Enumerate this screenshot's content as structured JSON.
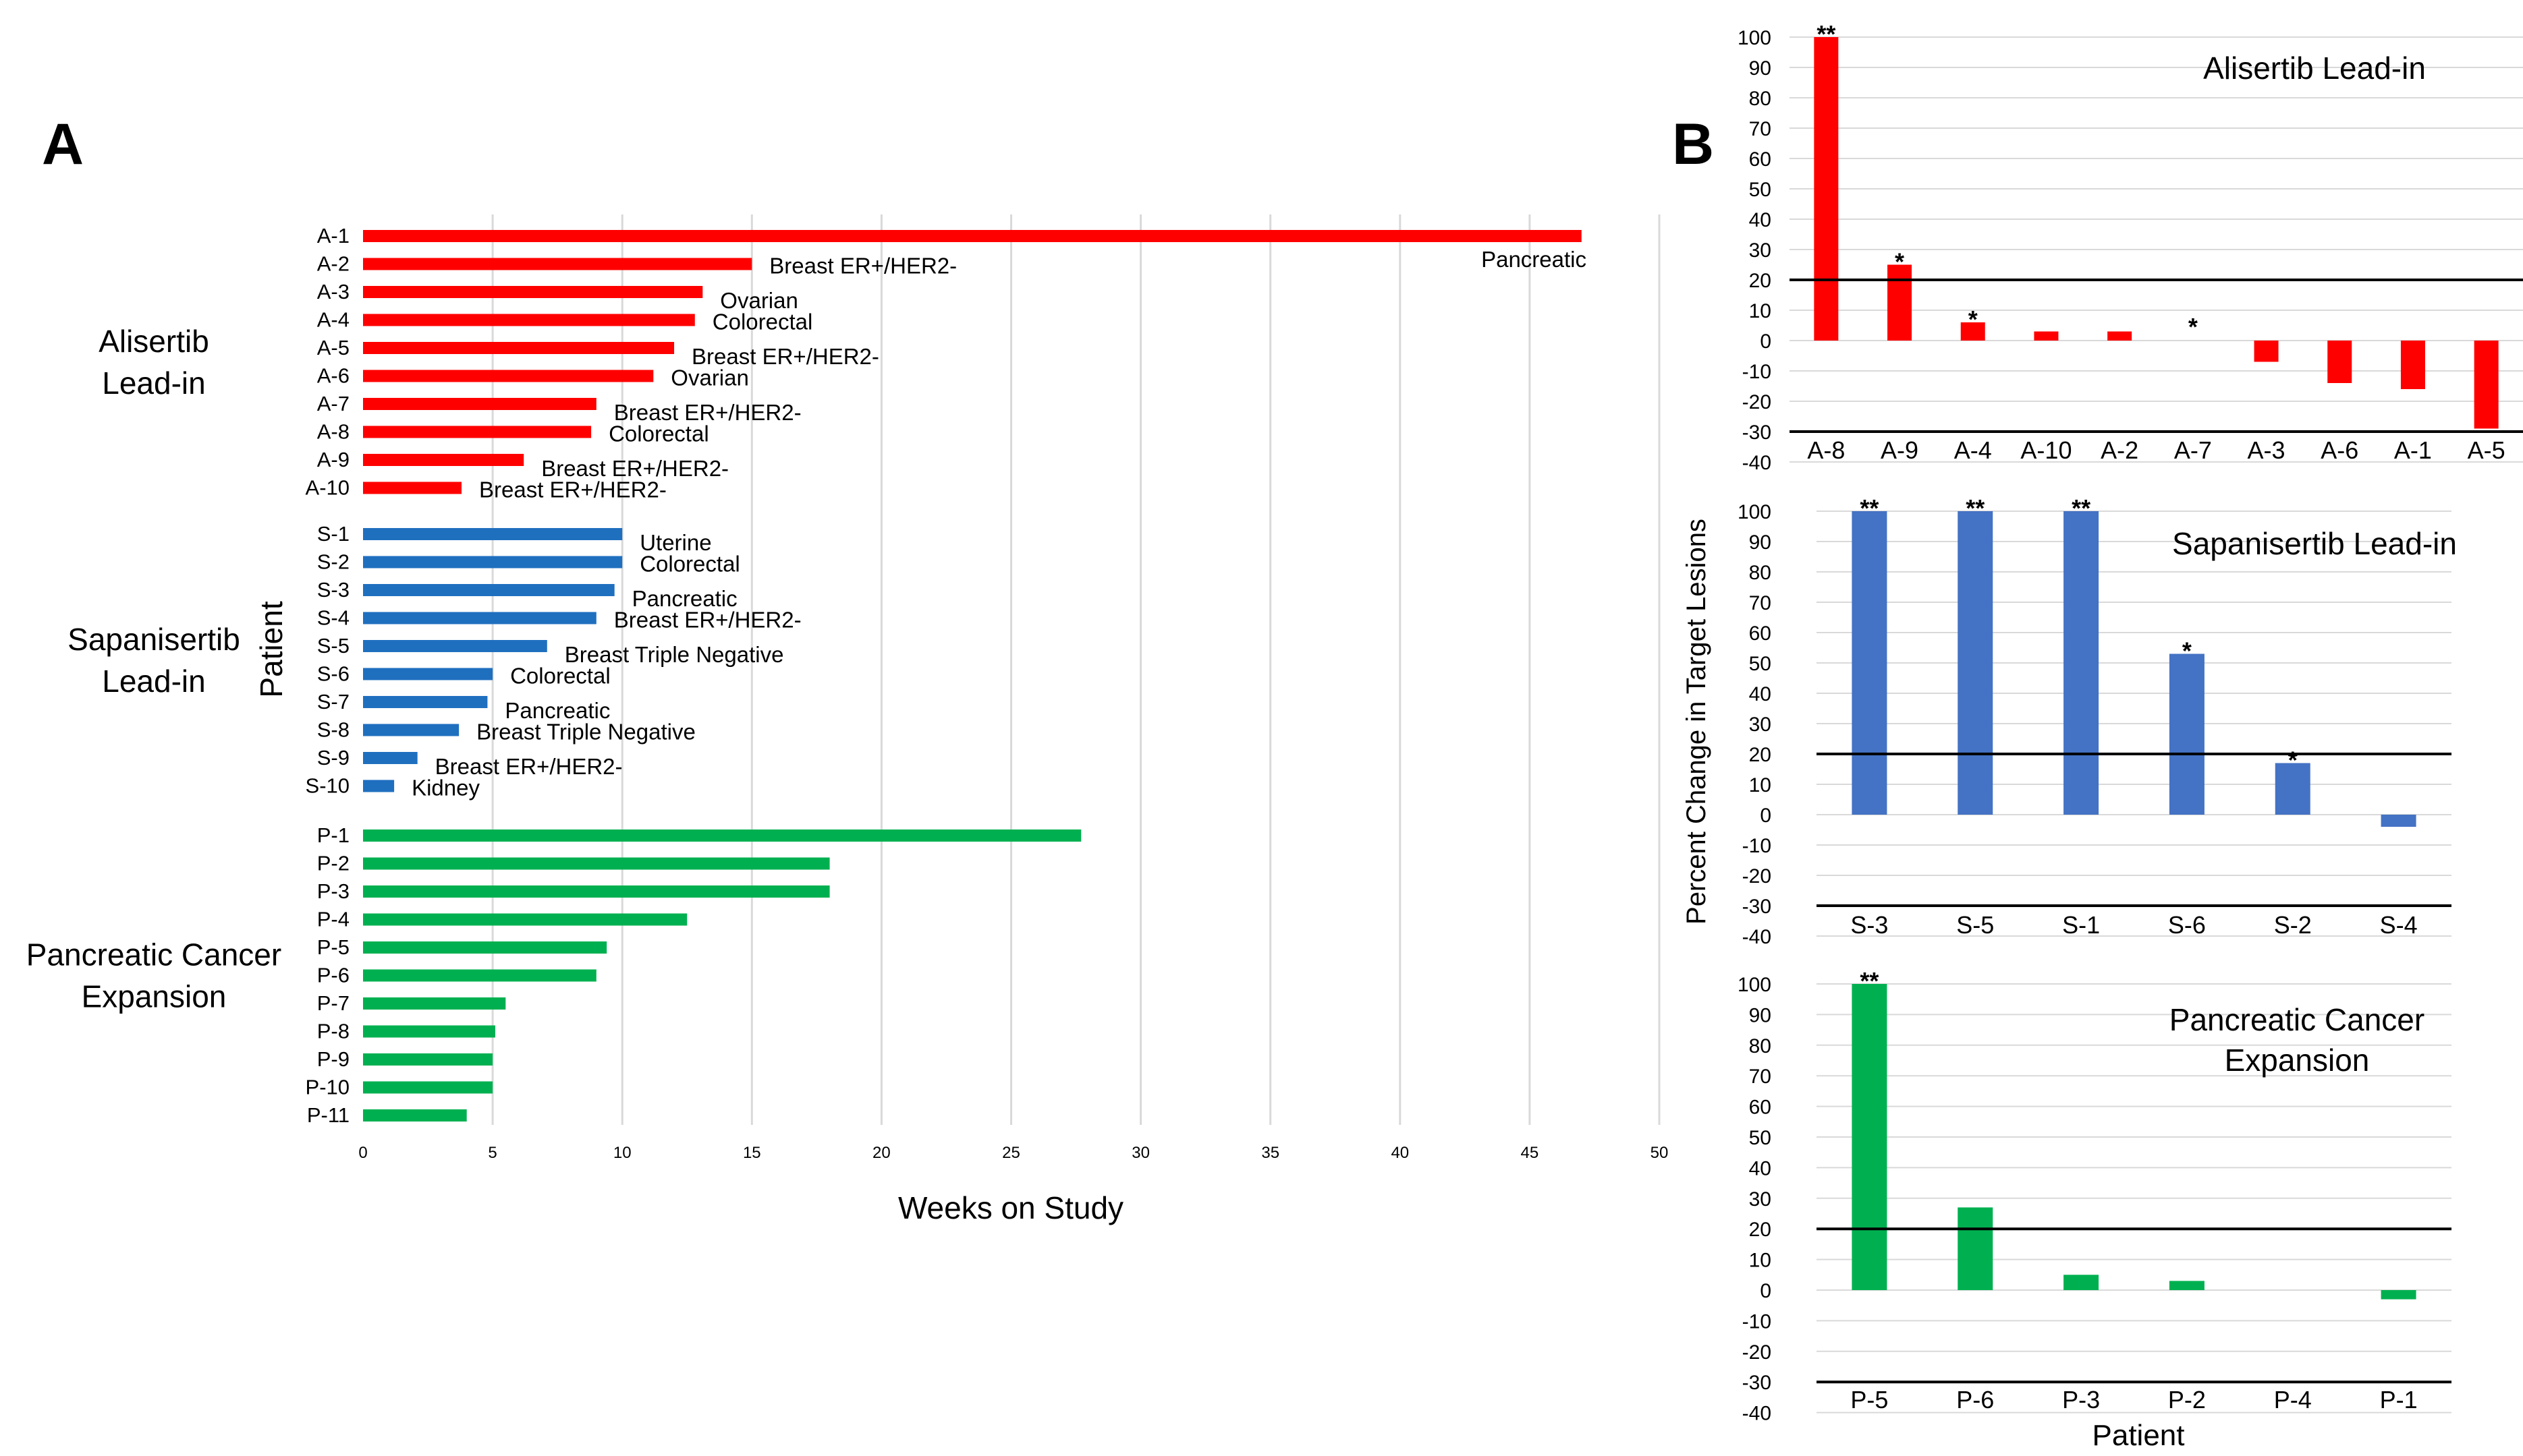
{
  "panel_labels": {
    "a": "A",
    "b": "B"
  },
  "colors": {
    "alisertib": "#ff0000",
    "sapanisertib": "#1f6fbf",
    "pancreatic": "#00b050",
    "sapanisertib_b": "#4472c4",
    "grid": "#d9d9d9"
  },
  "chart_data": [
    {
      "type": "bar",
      "orientation": "horizontal",
      "panel": "A",
      "xlabel": "Weeks on Study",
      "ylabel": "Patient",
      "xlim": [
        0,
        50
      ],
      "xticks": [
        "0",
        "5",
        "10",
        "15",
        "20",
        "25",
        "30",
        "35",
        "40",
        "45",
        "50"
      ],
      "groups": [
        {
          "name": "Alisertib Lead-in",
          "name_lines": [
            "Alisertib",
            "Lead-in"
          ],
          "color_key": "alisertib",
          "patients": [
            {
              "id": "A-1",
              "weeks": 47,
              "tumor": "Pancreatic"
            },
            {
              "id": "A-2",
              "weeks": 15,
              "tumor": "Breast ER+/HER2-"
            },
            {
              "id": "A-3",
              "weeks": 13.1,
              "tumor": "Ovarian"
            },
            {
              "id": "A-4",
              "weeks": 12.8,
              "tumor": "Colorectal"
            },
            {
              "id": "A-5",
              "weeks": 12,
              "tumor": "Breast ER+/HER2-"
            },
            {
              "id": "A-6",
              "weeks": 11.2,
              "tumor": "Ovarian"
            },
            {
              "id": "A-7",
              "weeks": 9,
              "tumor": "Breast ER+/HER2-"
            },
            {
              "id": "A-8",
              "weeks": 8.8,
              "tumor": "Colorectal"
            },
            {
              "id": "A-9",
              "weeks": 6.2,
              "tumor": "Breast ER+/HER2-"
            },
            {
              "id": "A-10",
              "weeks": 3.8,
              "tumor": "Breast ER+/HER2-"
            }
          ]
        },
        {
          "name": "Sapanisertib Lead-in",
          "name_lines": [
            "Sapanisertib",
            "Lead-in"
          ],
          "color_key": "sapanisertib",
          "patients": [
            {
              "id": "S-1",
              "weeks": 10,
              "tumor": "Uterine"
            },
            {
              "id": "S-2",
              "weeks": 10,
              "tumor": "Colorectal"
            },
            {
              "id": "S-3",
              "weeks": 9.7,
              "tumor": "Pancreatic"
            },
            {
              "id": "S-4",
              "weeks": 9,
              "tumor": "Breast ER+/HER2-"
            },
            {
              "id": "S-5",
              "weeks": 7.1,
              "tumor": "Breast Triple Negative"
            },
            {
              "id": "S-6",
              "weeks": 5,
              "tumor": "Colorectal"
            },
            {
              "id": "S-7",
              "weeks": 4.8,
              "tumor": "Pancreatic"
            },
            {
              "id": "S-8",
              "weeks": 3.7,
              "tumor": "Breast Triple Negative"
            },
            {
              "id": "S-9",
              "weeks": 2.1,
              "tumor": "Breast ER+/HER2-"
            },
            {
              "id": "S-10",
              "weeks": 1.2,
              "tumor": "Kidney"
            }
          ]
        },
        {
          "name": "Pancreatic Cancer Expansion",
          "name_lines": [
            "Pancreatic Cancer",
            "Expansion"
          ],
          "color_key": "pancreatic",
          "patients": [
            {
              "id": "P-1",
              "weeks": 27.7,
              "tumor": ""
            },
            {
              "id": "P-2",
              "weeks": 18,
              "tumor": ""
            },
            {
              "id": "P-3",
              "weeks": 18,
              "tumor": ""
            },
            {
              "id": "P-4",
              "weeks": 12.5,
              "tumor": ""
            },
            {
              "id": "P-5",
              "weeks": 9.4,
              "tumor": ""
            },
            {
              "id": "P-6",
              "weeks": 9,
              "tumor": ""
            },
            {
              "id": "P-7",
              "weeks": 5.5,
              "tumor": ""
            },
            {
              "id": "P-8",
              "weeks": 5.1,
              "tumor": ""
            },
            {
              "id": "P-9",
              "weeks": 5,
              "tumor": ""
            },
            {
              "id": "P-10",
              "weeks": 5,
              "tumor": ""
            },
            {
              "id": "P-11",
              "weeks": 4,
              "tumor": ""
            }
          ]
        }
      ]
    },
    {
      "type": "bar",
      "panel": "B",
      "title_lines": [
        "Alisertib Lead-in"
      ],
      "color_key": "alisertib",
      "ylim": [
        -40,
        100
      ],
      "yticks": [
        "100",
        "90",
        "80",
        "70",
        "60",
        "50",
        "40",
        "30",
        "20",
        "10",
        "0",
        "-10",
        "-20",
        "-30",
        "-40"
      ],
      "reference_line": 20,
      "categories": [
        "A-8",
        "A-9",
        "A-4",
        "A-10",
        "A-2",
        "A-7",
        "A-3",
        "A-6",
        "A-1",
        "A-5"
      ],
      "values": [
        100,
        25,
        6,
        3,
        3,
        0,
        -7,
        -14,
        -16,
        -29
      ],
      "annotations": [
        "**",
        "*",
        "*",
        "",
        "",
        "*",
        "",
        "",
        "",
        ""
      ]
    },
    {
      "type": "bar",
      "panel": "B",
      "title_lines": [
        "Sapanisertib Lead-in"
      ],
      "color_key": "sapanisertib_b",
      "ylim": [
        -40,
        100
      ],
      "yticks": [
        "100",
        "90",
        "80",
        "70",
        "60",
        "50",
        "40",
        "30",
        "20",
        "10",
        "0",
        "-10",
        "-20",
        "-30",
        "-40"
      ],
      "reference_line": 20,
      "categories": [
        "S-3",
        "S-5",
        "S-1",
        "S-6",
        "S-2",
        "S-4"
      ],
      "values": [
        100,
        100,
        100,
        53,
        17,
        -4
      ],
      "annotations": [
        "**",
        "**",
        "**",
        "*",
        "*",
        ""
      ]
    },
    {
      "type": "bar",
      "panel": "B",
      "title_lines": [
        "Pancreatic Cancer",
        "Expansion"
      ],
      "color_key": "pancreatic",
      "ylim": [
        -40,
        100
      ],
      "yticks": [
        "100",
        "90",
        "80",
        "70",
        "60",
        "50",
        "40",
        "30",
        "20",
        "10",
        "0",
        "-10",
        "-20",
        "-30",
        "-40"
      ],
      "reference_line": 20,
      "categories": [
        "P-5",
        "P-6",
        "P-3",
        "P-2",
        "P-4",
        "P-1"
      ],
      "values": [
        100,
        27,
        5,
        3,
        0,
        -3
      ],
      "annotations": [
        "**",
        "",
        "",
        "",
        "",
        ""
      ]
    }
  ],
  "panel_b_ylabel": "Percent Change in Target Lesions",
  "panel_b_xlabel": "Patient"
}
